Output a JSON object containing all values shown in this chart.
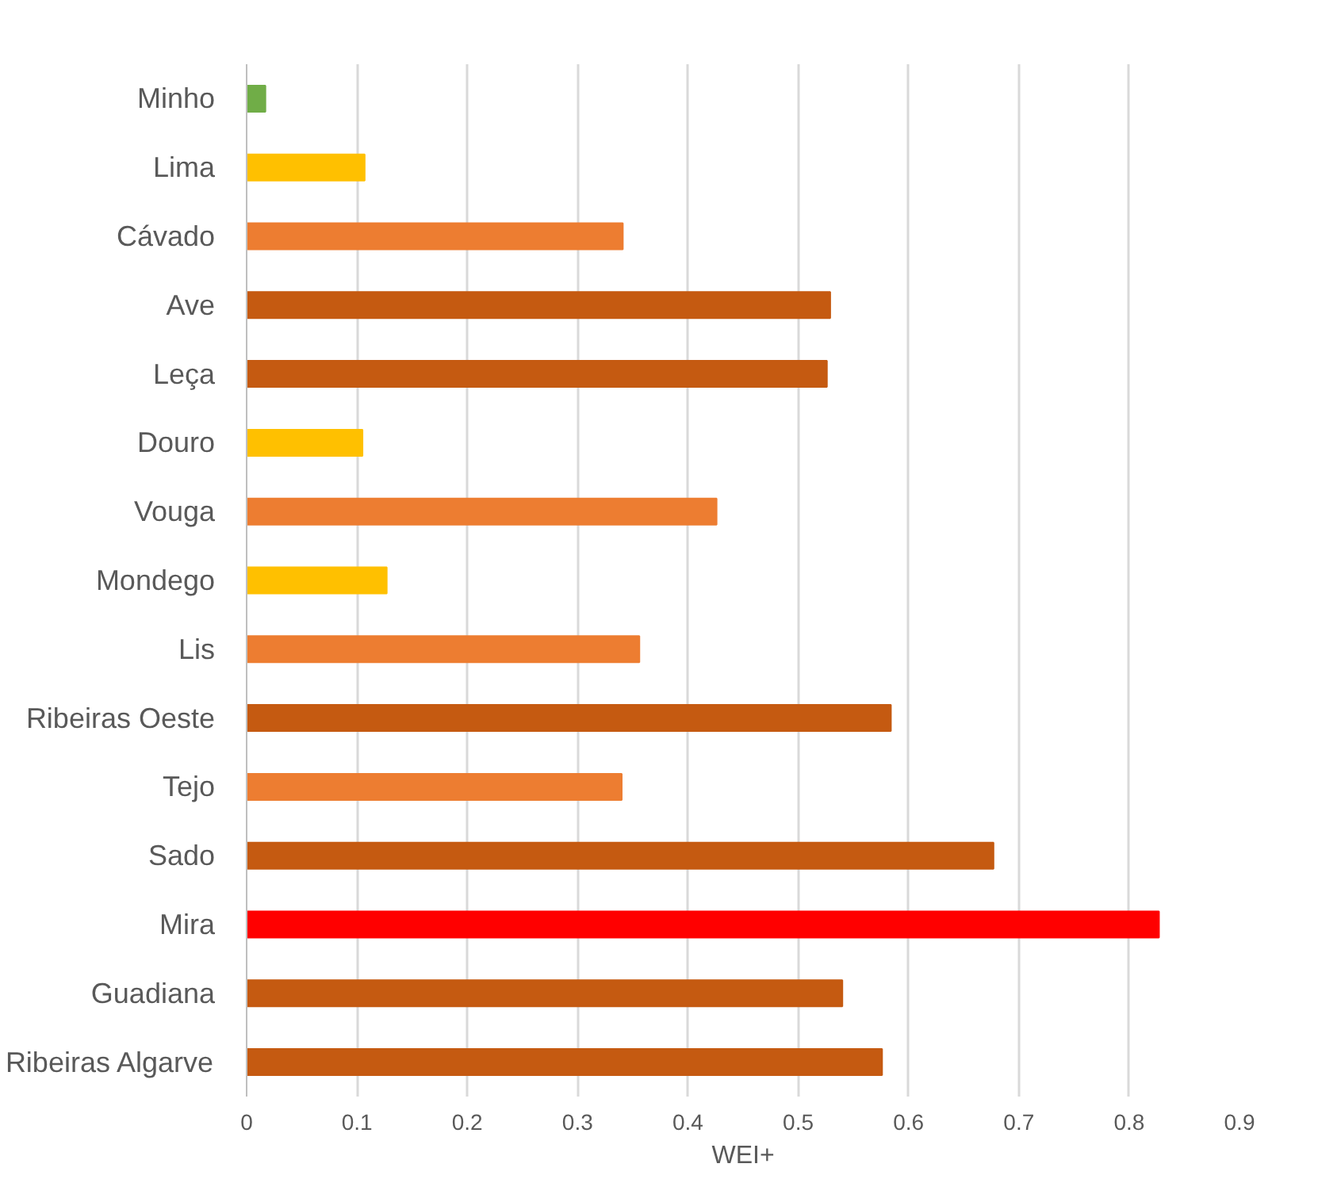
{
  "chart_data": {
    "type": "bar",
    "orientation": "horizontal",
    "xlabel": "WEI+",
    "categories": [
      "Minho",
      "Lima",
      "Cávado",
      "Ave",
      "Leça",
      "Douro",
      "Vouga",
      "Mondego",
      "Lis",
      "Ribeiras Oeste",
      "Tejo",
      "Sado",
      "Mira",
      "Guadiana",
      "Ribeiras Algarve"
    ],
    "values": [
      0.017,
      0.107,
      0.341,
      0.529,
      0.526,
      0.105,
      0.426,
      0.127,
      0.356,
      0.584,
      0.34,
      0.677,
      0.827,
      0.54,
      0.576
    ],
    "colors": [
      "#70ad47",
      "#ffc000",
      "#ed7d31",
      "#c55a11",
      "#c55a11",
      "#ffc000",
      "#ed7d31",
      "#ffc000",
      "#ed7d31",
      "#c55a11",
      "#ed7d31",
      "#c55a11",
      "#ff0000",
      "#c55a11",
      "#c55a11"
    ],
    "xlim": [
      0,
      0.9
    ],
    "xticks": [
      0,
      0.1,
      0.2,
      0.3,
      0.4,
      0.5,
      0.6,
      0.7,
      0.8,
      0.9
    ],
    "grid": "x"
  }
}
